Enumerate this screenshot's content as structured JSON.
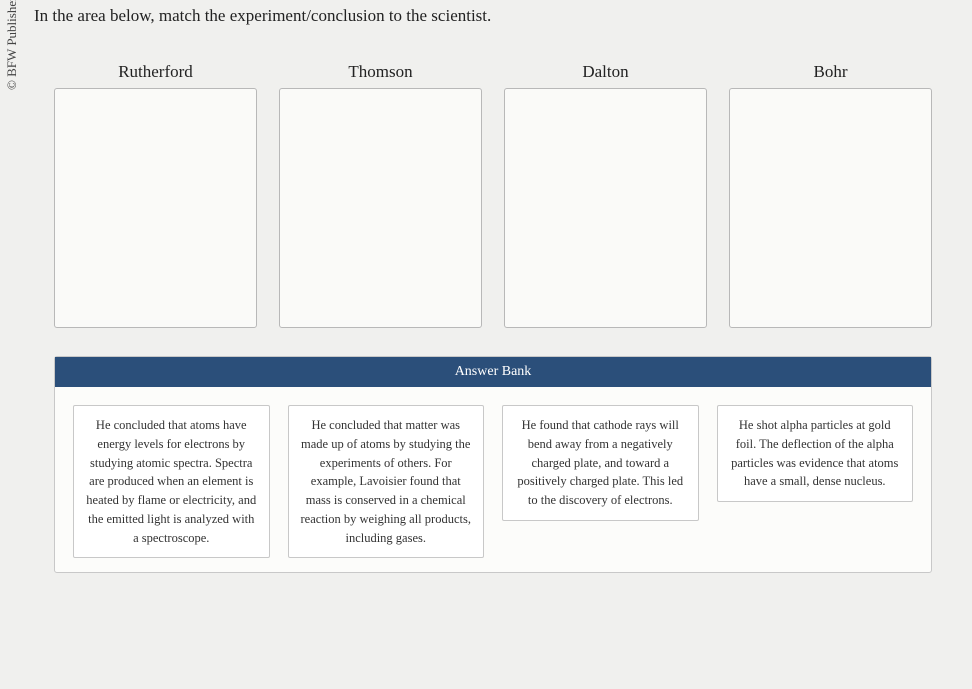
{
  "copyright": "© BFW Publishers",
  "instruction": "In the area below, match the experiment/conclusion to the scientist.",
  "scientists": [
    {
      "name": "Rutherford"
    },
    {
      "name": "Thomson"
    },
    {
      "name": "Dalton"
    },
    {
      "name": "Bohr"
    }
  ],
  "bank": {
    "title": "Answer Bank",
    "cards": [
      {
        "text": "He concluded that atoms have energy levels for electrons by studying atomic spectra. Spectra are produced when an element is heated by flame or electricity, and the emitted light is analyzed with a spectroscope."
      },
      {
        "text": "He concluded that matter was made up of atoms by studying the experiments of others. For example, Lavoisier found that mass is conserved in a chemical reaction by weighing all products, including gases."
      },
      {
        "text": "He found that cathode rays will bend away from a negatively charged plate, and toward a positively charged plate. This led to the discovery of electrons."
      },
      {
        "text": "He shot alpha particles at gold foil. The deflection of the alpha particles was evidence that atoms have a small, dense nucleus."
      }
    ]
  },
  "colors": {
    "bank_header_bg": "#2b4f7a",
    "bank_header_text": "#ffffff",
    "page_bg": "#f0f0ee",
    "border": "#c8c8c8"
  }
}
